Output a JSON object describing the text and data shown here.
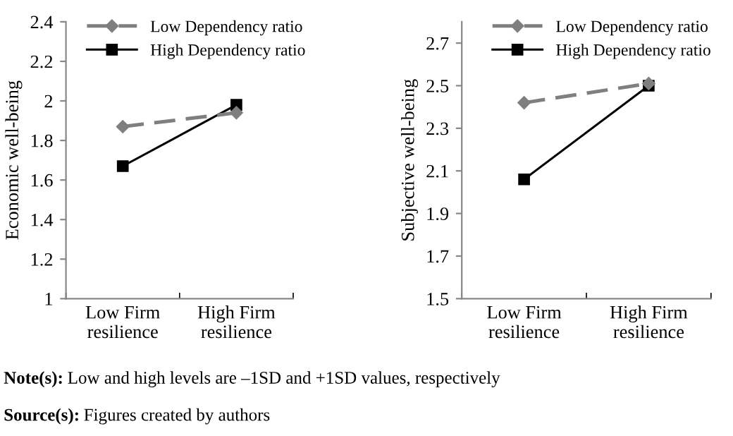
{
  "chart_data": [
    {
      "type": "line",
      "ylabel": "Economic well-being",
      "categories": [
        "Low Firm\nresilience",
        "High Firm\nresilience"
      ],
      "ylim": [
        1,
        2.4
      ],
      "yticks": [
        1,
        {
          "value": 1.2,
          "label": "1.2"
        },
        {
          "value": 1.4,
          "label": "1.4"
        },
        {
          "value": 1.6,
          "label": "1.6"
        },
        {
          "value": 1.8,
          "label": "1.8"
        },
        2,
        {
          "value": 2.2,
          "label": "2.2"
        },
        {
          "value": 2.4,
          "label": "2.4"
        }
      ],
      "grid": false,
      "legend": "top right",
      "series": [
        {
          "name": "Low Dependency ratio",
          "color": "#7f7f7f",
          "values": [
            1.87,
            1.94
          ],
          "marker": "diamond",
          "line_style": "dashed"
        },
        {
          "name": "High Dependency ratio",
          "color": "#000000",
          "values": [
            1.67,
            1.98
          ],
          "marker": "square",
          "line_style": "solid"
        }
      ],
      "annotations": [
        "Note(s): Low and high levels are –1SD and +1SD values, respectively",
        "Source(s): Figures created by authors"
      ]
    },
    {
      "type": "line",
      "ylabel": "Subjective well-being",
      "categories": [
        "Low Firm\nresilience",
        "High Firm\nresilience"
      ],
      "ylim": [
        1.5,
        2.8
      ],
      "yticks": [
        1.5,
        1.7,
        1.9,
        2.1,
        2.3,
        2.5,
        2.7
      ],
      "grid": false,
      "legend": "top right",
      "series": [
        {
          "name": "Low Dependency ratio",
          "color": "#7f7f7f",
          "values": [
            2.42,
            2.51
          ],
          "marker": "diamond",
          "line_style": "dashed"
        },
        {
          "name": "High Dependency ratio",
          "color": "#000000",
          "values": [
            2.06,
            2.5
          ],
          "marker": "square",
          "line_style": "solid"
        }
      ]
    }
  ]
}
